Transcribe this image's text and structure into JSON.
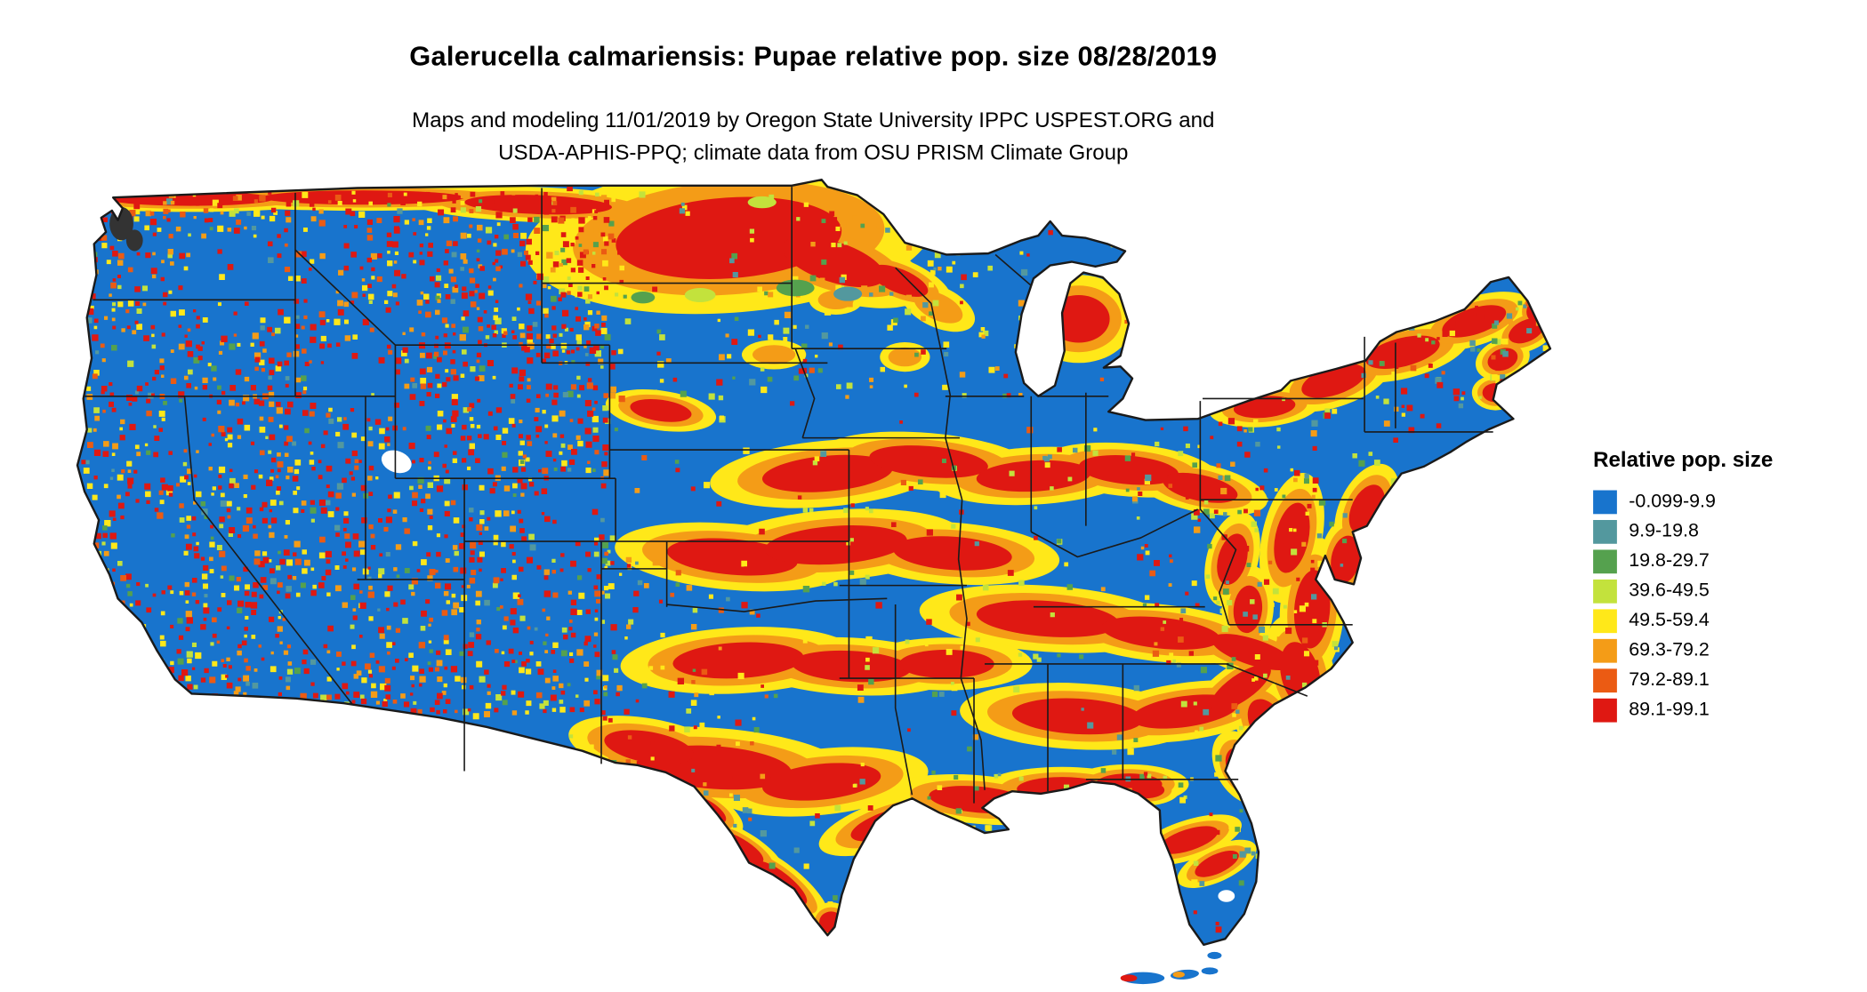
{
  "header": {
    "title": "Galerucella calmariensis: Pupae relative pop. size 08/28/2019",
    "subtitle_line1": "Maps and modeling 11/01/2019 by Oregon State University IPPC USPEST.ORG and",
    "subtitle_line2": "USDA-APHIS-PPQ; climate data from OSU PRISM Climate Group"
  },
  "legend": {
    "title": "Relative pop. size",
    "items": [
      {
        "label": "-0.099-9.9",
        "color": "#1874CD"
      },
      {
        "label": "9.9-19.8",
        "color": "#53989E"
      },
      {
        "label": "19.8-29.7",
        "color": "#55A14E"
      },
      {
        "label": "39.6-49.5",
        "color": "#C3E23C"
      },
      {
        "label": "49.5-59.4",
        "color": "#FFE819"
      },
      {
        "label": "69.3-79.2",
        "color": "#F49C17"
      },
      {
        "label": "79.2-89.1",
        "color": "#EB5B13"
      },
      {
        "label": "89.1-99.1",
        "color": "#DF1812"
      }
    ]
  },
  "map": {
    "name": "Contiguous United States",
    "base_color": "#1874CD",
    "border_color": "#1A1A1A",
    "background": "#FFFFFF"
  }
}
